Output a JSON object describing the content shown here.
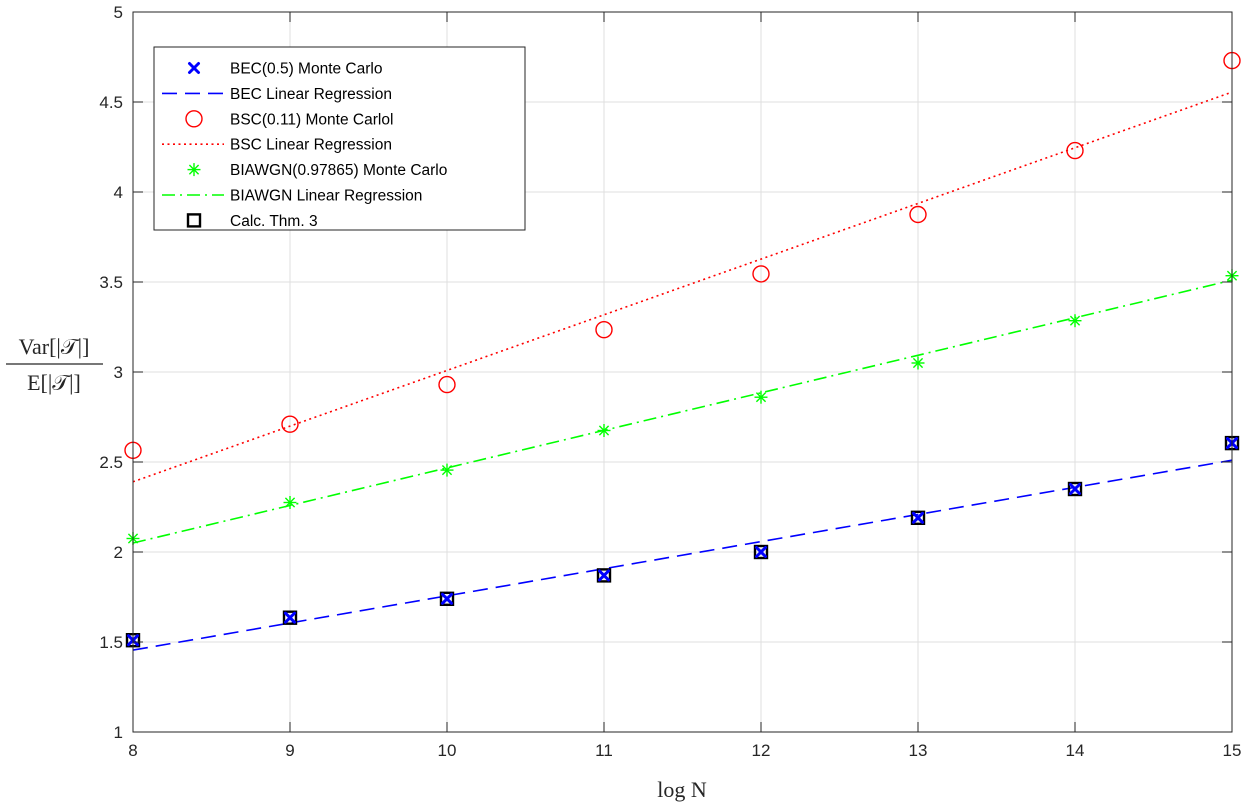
{
  "chart_data": {
    "type": "line",
    "title": "",
    "xlabel": "log N",
    "ylabel_numerator": "Var[|𝒯|]",
    "ylabel_denominator": "E[|𝒯|]",
    "xlim": [
      8,
      15
    ],
    "ylim": [
      1,
      5
    ],
    "xticks": [
      8,
      9,
      10,
      11,
      12,
      13,
      14,
      15
    ],
    "yticks": [
      1,
      1.5,
      2,
      2.5,
      3,
      3.5,
      4,
      4.5,
      5
    ],
    "ytick_labels": [
      "1",
      "1.5",
      "2",
      "2.5",
      "3",
      "3.5",
      "4",
      "4.5",
      "5"
    ],
    "grid": true,
    "legend_position": "top-left",
    "colors": {
      "bec": "#0000ff",
      "bsc": "#ff0000",
      "biawgn": "#00ff00",
      "calc": "#000000"
    },
    "x": [
      8,
      9,
      10,
      11,
      12,
      13,
      14,
      15
    ],
    "series": [
      {
        "name": "BEC(0.5) Monte Carlo",
        "kind": "marker",
        "marker": "x",
        "color": "#0000ff",
        "values": [
          1.51,
          1.635,
          1.74,
          1.87,
          2.0,
          2.19,
          2.35,
          2.605
        ]
      },
      {
        "name": "BEC Linear Regression",
        "kind": "line",
        "dash": "dashed",
        "color": "#0000ff",
        "line_start": [
          8,
          1.455
        ],
        "line_end": [
          15,
          2.51
        ]
      },
      {
        "name": "BSC(0.11) Monte Carlol",
        "kind": "marker",
        "marker": "circle",
        "color": "#ff0000",
        "values": [
          2.565,
          2.71,
          2.93,
          3.235,
          3.545,
          3.875,
          4.23,
          4.73
        ]
      },
      {
        "name": "BSC Linear Regression",
        "kind": "line",
        "dash": "dotted",
        "color": "#ff0000",
        "line_start": [
          8,
          2.39
        ],
        "line_end": [
          15,
          4.555
        ]
      },
      {
        "name": "BIAWGN(0.97865) Monte Carlo",
        "kind": "marker",
        "marker": "asterisk",
        "color": "#00ff00",
        "values": [
          2.075,
          2.275,
          2.455,
          2.675,
          2.86,
          3.05,
          3.285,
          3.535
        ]
      },
      {
        "name": "BIAWGN Linear Regression",
        "kind": "line",
        "dash": "dashdot",
        "color": "#00ff00",
        "line_start": [
          8,
          2.05
        ],
        "line_end": [
          15,
          3.51
        ]
      },
      {
        "name": "Calc. Thm. 3",
        "kind": "marker",
        "marker": "square",
        "color": "#000000",
        "values": [
          1.51,
          1.635,
          1.74,
          1.87,
          2.0,
          2.19,
          2.35,
          2.605
        ]
      }
    ]
  }
}
